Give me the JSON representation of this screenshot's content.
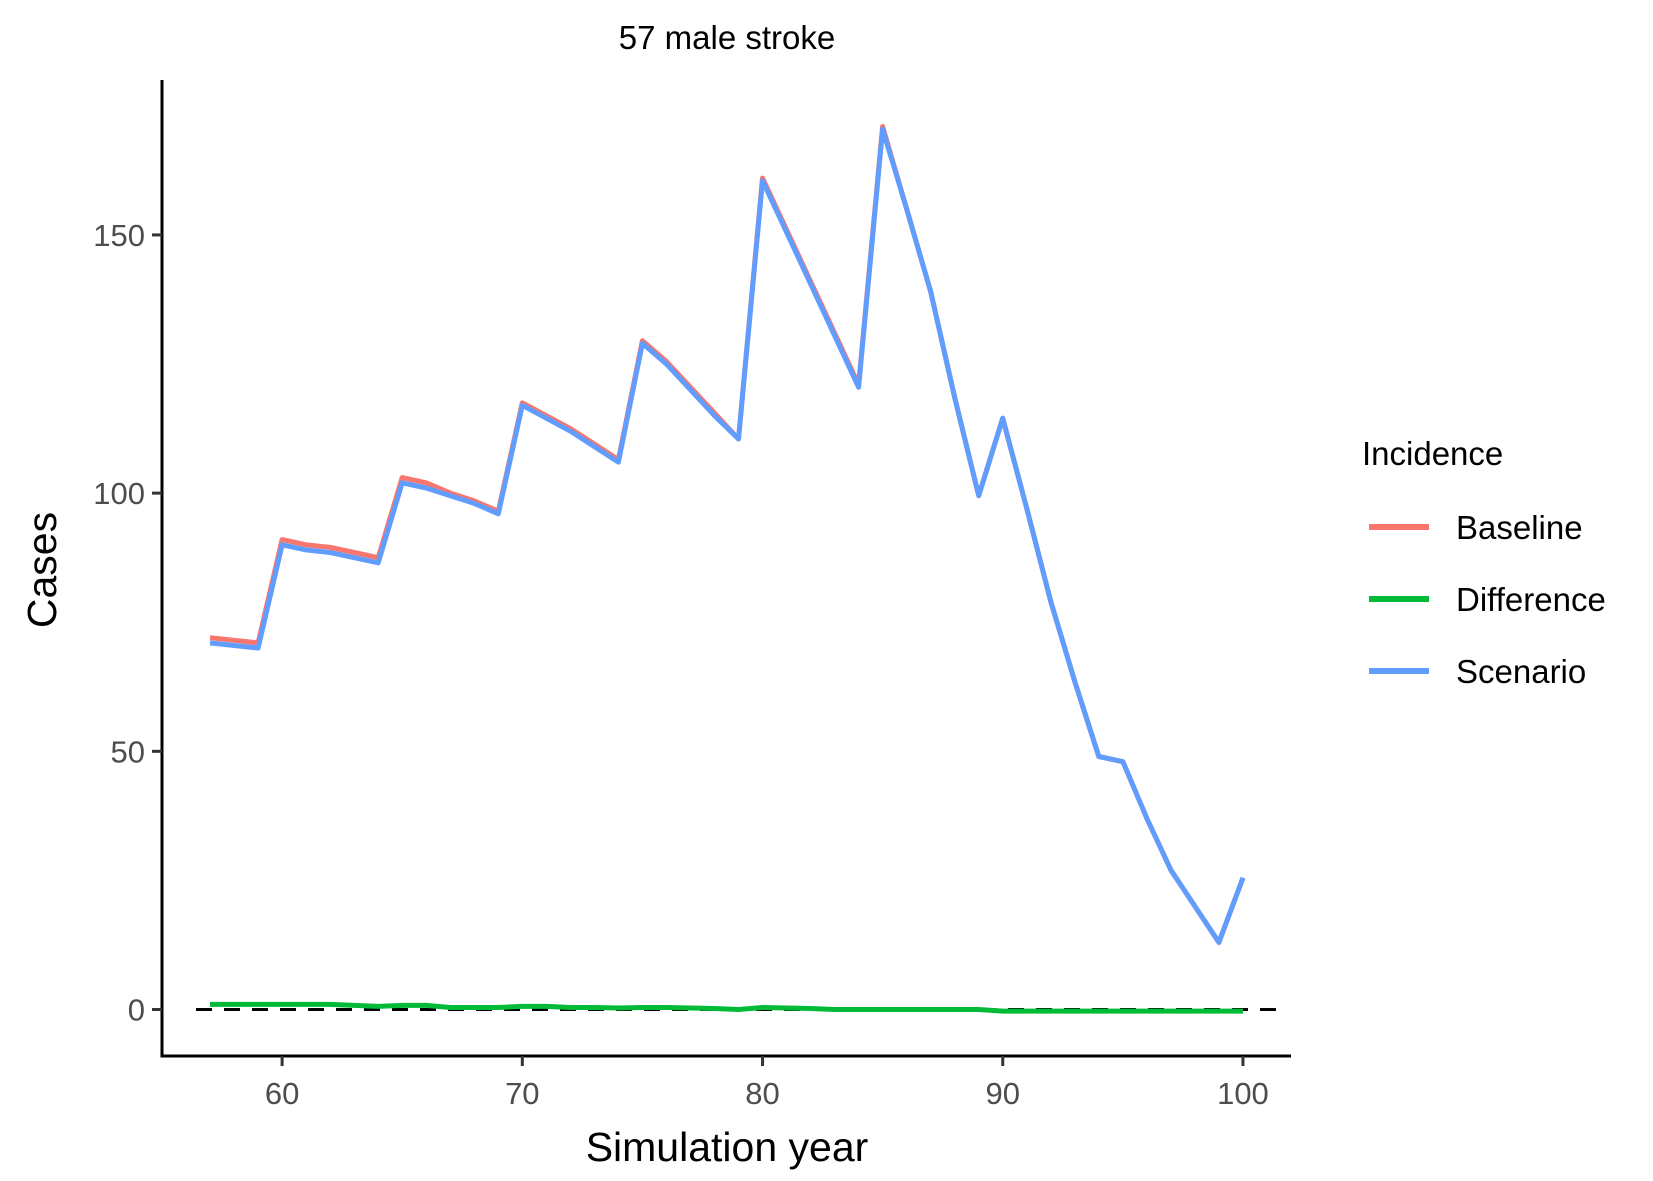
{
  "chart_data": {
    "type": "line",
    "title": "57 male stroke",
    "xlabel": "Simulation year",
    "ylabel": "Cases",
    "xlim": [
      55,
      102
    ],
    "ylim": [
      -9,
      180
    ],
    "x_ticks": [
      60,
      70,
      80,
      90,
      100
    ],
    "y_ticks": [
      0,
      50,
      100,
      150
    ],
    "grid": false,
    "reference_line": {
      "y": 0,
      "style": "dashed",
      "color": "#000000"
    },
    "legend": {
      "title": "Incidence",
      "placement": "right"
    },
    "x": [
      57,
      58,
      59,
      60,
      61,
      62,
      63,
      64,
      65,
      66,
      67,
      68,
      69,
      70,
      71,
      72,
      73,
      74,
      75,
      76,
      77,
      78,
      79,
      80,
      81,
      82,
      83,
      84,
      85,
      86,
      87,
      88,
      89,
      90,
      91,
      92,
      93,
      94,
      95,
      96,
      97,
      98,
      99,
      100
    ],
    "series": [
      {
        "name": "Baseline",
        "color": "#F8766D",
        "values": [
          72,
          71.5,
          71,
          91,
          90,
          89.5,
          88.5,
          87.5,
          103,
          102,
          100,
          98.5,
          96.5,
          117.5,
          115,
          112.5,
          109.5,
          106.5,
          129.5,
          125.5,
          120.5,
          115.5,
          110.5,
          161,
          151,
          141,
          131,
          121,
          171,
          155,
          139,
          118.5,
          99.5,
          114.5,
          97,
          79,
          63.5,
          49,
          48,
          37,
          27,
          20,
          13,
          25.5
        ]
      },
      {
        "name": "Difference",
        "color": "#00BA38",
        "values": [
          1,
          1,
          1,
          1,
          1,
          1,
          0.8,
          0.6,
          0.8,
          0.8,
          0.4,
          0.4,
          0.4,
          0.6,
          0.6,
          0.4,
          0.4,
          0.3,
          0.4,
          0.4,
          0.3,
          0.2,
          0,
          0.4,
          0.3,
          0.2,
          0,
          0,
          0,
          0,
          0,
          0,
          0,
          -0.3,
          -0.3,
          -0.3,
          -0.3,
          -0.3,
          -0.3,
          -0.3,
          -0.3,
          -0.3,
          -0.3,
          -0.3
        ]
      },
      {
        "name": "Scenario",
        "color": "#619CFF",
        "values": [
          71,
          70.5,
          70,
          90,
          89,
          88.5,
          87.5,
          86.5,
          102,
          101,
          99.5,
          98,
          96,
          117,
          114.5,
          112,
          109,
          106,
          129,
          125,
          120,
          115,
          110.5,
          160.5,
          150.5,
          140.5,
          130.5,
          120.5,
          170.5,
          155,
          139,
          118.5,
          99.5,
          114.5,
          97,
          79,
          63.5,
          49,
          48,
          37,
          27,
          20,
          13,
          25.5
        ]
      }
    ]
  }
}
